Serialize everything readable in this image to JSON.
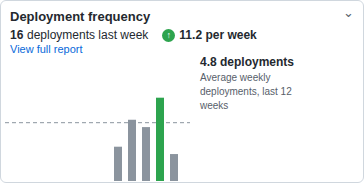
{
  "chart_data": {
    "type": "bar",
    "title": "Deployment frequency",
    "categories": [
      null,
      null,
      null,
      null,
      null,
      null,
      null,
      null,
      null,
      null,
      null,
      null
    ],
    "values": [
      0,
      0,
      0,
      0,
      0,
      0,
      0,
      2.8,
      5.0,
      4.4,
      6.8,
      2.2
    ],
    "colors": [
      "#8b949e",
      "#8b949e",
      "#8b949e",
      "#8b949e",
      "#8b949e",
      "#8b949e",
      "#8b949e",
      "#8b949e",
      "#8b949e",
      "#8b949e",
      "#2da44e",
      "#8b949e"
    ],
    "ylim": [
      0,
      8.0
    ],
    "tick_labels": false,
    "grid": false,
    "average": {
      "value": 4.8,
      "color": "#8b949e",
      "line_style": "dashed"
    },
    "annotations": [
      {
        "text": "⌄",
        "color": "#57606a"
      },
      {
        "text": "16"
      },
      {
        "text": "deployments last week"
      },
      {
        "text": "↑",
        "color": "#2da44e"
      },
      {
        "text": "11.2 per week"
      },
      {
        "text": "View full report",
        "color": "#0969da"
      },
      {
        "text": "4.8 deployments"
      },
      {
        "text": "Average weekly\ndeployments, last 12\nweeks",
        "color": "#57606a"
      }
    ]
  }
}
